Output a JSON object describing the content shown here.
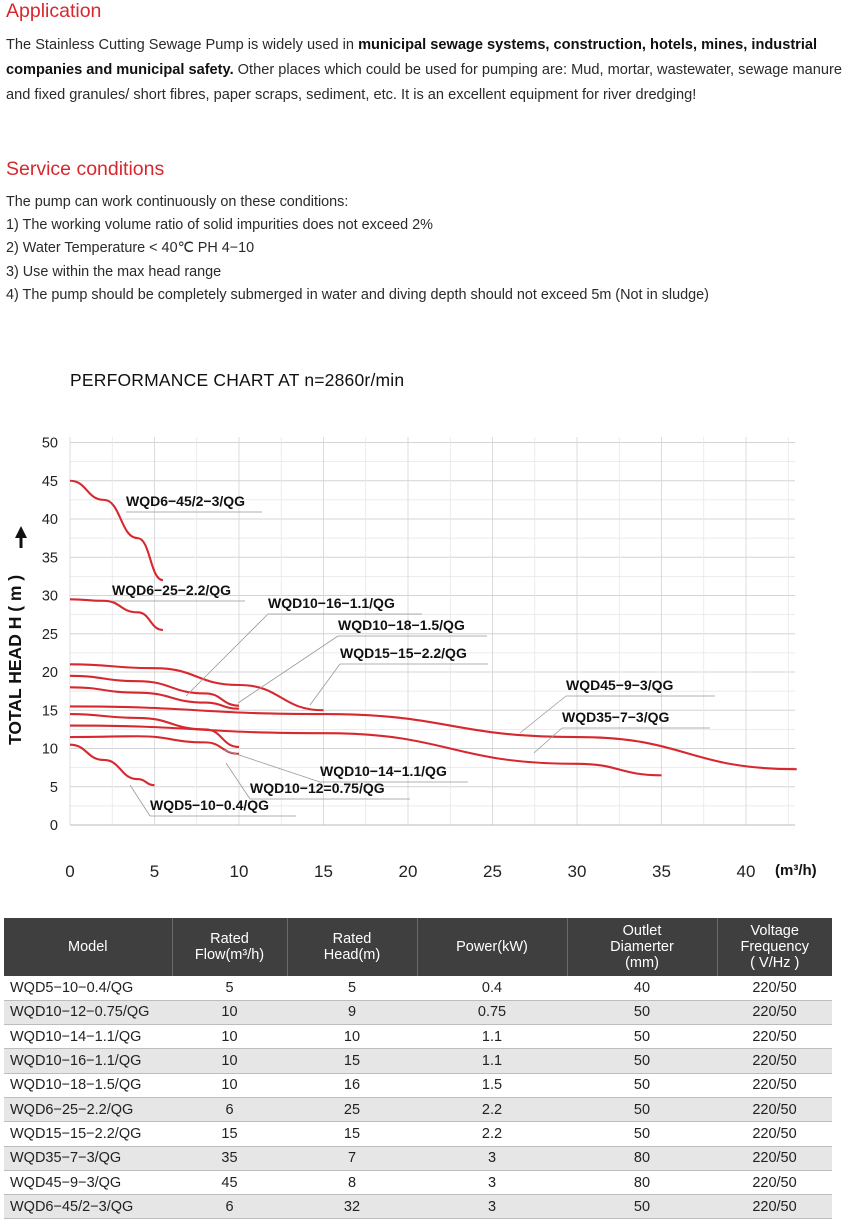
{
  "application": {
    "heading": "Application",
    "text_1": "The Stainless Cutting Sewage Pump is widely used in ",
    "bold_1": "municipal sewage systems, construction, hotels, mines, industrial companies and municipal safety.",
    "text_2": " Other places which could be used for pumping are: Mud, mortar, wastewater, sewage manure and fixed granules/ short fibres, paper scraps, sediment, etc. It is an excellent  equipment for river dredging!"
  },
  "service": {
    "heading": "Service conditions",
    "lines": [
      "The pump can work continuously on these conditions:",
      "1) The working volume ratio of solid impurities does not exceed 2%",
      "2) Water Temperature < 40℃   PH 4−10",
      "3) Use within the max head range",
      "4) The pump should be completely submerged in water and diving depth should not exceed 5m (Not in sludge)"
    ]
  },
  "chart_data": {
    "type": "line",
    "title": "PERFORMANCE  CHART AT  n=2860r/min",
    "ylabel": "TOTAL HEAD  H ( m )",
    "xlabel": "(m³/h)",
    "xlim": [
      0,
      44
    ],
    "ylim": [
      0,
      50
    ],
    "x_ticks": [
      0,
      5,
      10,
      15,
      20,
      25,
      30,
      35,
      40
    ],
    "y_ticks": [
      0,
      5,
      10,
      15,
      20,
      25,
      30,
      35,
      40,
      45,
      50
    ],
    "grid": true,
    "line_color": "#d7282f",
    "series": [
      {
        "name": "WQD6−45/2−3/QG",
        "x": [
          0,
          2,
          4,
          5.5
        ],
        "y": [
          45,
          42.5,
          37.5,
          32
        ]
      },
      {
        "name": "WQD6−25−2.2/QG",
        "x": [
          0,
          2,
          4,
          5.5
        ],
        "y": [
          29.5,
          29.3,
          27.8,
          25.5
        ]
      },
      {
        "name": "WQD10−16−1.1/QG",
        "x": [
          0,
          4,
          8,
          10
        ],
        "y": [
          18,
          17.3,
          16,
          15.2
        ]
      },
      {
        "name": "WQD10−18−1.5/QG",
        "x": [
          0,
          4,
          8,
          10
        ],
        "y": [
          19.5,
          18.8,
          17.2,
          15.6
        ]
      },
      {
        "name": "WQD15−15−2.2/QG",
        "x": [
          0,
          5,
          10,
          15
        ],
        "y": [
          21,
          20.5,
          18.3,
          15
        ]
      },
      {
        "name": "WQD45−9−3/QG",
        "x": [
          0,
          15,
          30,
          43
        ],
        "y": [
          15.5,
          14.5,
          11.5,
          7.3
        ]
      },
      {
        "name": "WQD35−7−3/QG",
        "x": [
          0,
          15,
          30,
          35
        ],
        "y": [
          13,
          12,
          8,
          6.5
        ]
      },
      {
        "name": "WQD10−14−1.1/QG",
        "x": [
          0,
          4,
          8,
          10
        ],
        "y": [
          14.5,
          14,
          12.5,
          10.2
        ]
      },
      {
        "name": "WQD10−12=0.75/QG",
        "x": [
          0,
          4,
          8,
          10
        ],
        "y": [
          11.5,
          11.6,
          10.8,
          9.3
        ]
      },
      {
        "name": "WQD5−10−0.4/QG",
        "x": [
          0,
          2,
          4,
          5
        ],
        "y": [
          10.5,
          8.5,
          6,
          5.2
        ]
      }
    ]
  },
  "table": {
    "headers": [
      [
        "Model"
      ],
      [
        "Rated",
        "Flow(m³/h)"
      ],
      [
        "Rated",
        "Head(m)"
      ],
      [
        "Power(kW)"
      ],
      [
        "Outlet",
        "Diamerter",
        "(mm)"
      ],
      [
        "Voltage",
        "Frequency",
        "( V/Hz )"
      ]
    ],
    "rows": [
      [
        "WQD5−10−0.4/QG",
        "5",
        "5",
        "0.4",
        "40",
        "220/50"
      ],
      [
        "WQD10−12−0.75/QG",
        "10",
        "9",
        "0.75",
        "50",
        "220/50"
      ],
      [
        "WQD10−14−1.1/QG",
        "10",
        "10",
        "1.1",
        "50",
        "220/50"
      ],
      [
        "WQD10−16−1.1/QG",
        "10",
        "15",
        "1.1",
        "50",
        "220/50"
      ],
      [
        "WQD10−18−1.5/QG",
        "10",
        "16",
        "1.5",
        "50",
        "220/50"
      ],
      [
        "WQD6−25−2.2/QG",
        "6",
        "25",
        "2.2",
        "50",
        "220/50"
      ],
      [
        "WQD15−15−2.2/QG",
        "15",
        "15",
        "2.2",
        "50",
        "220/50"
      ],
      [
        "WQD35−7−3/QG",
        "35",
        "7",
        "3",
        "80",
        "220/50"
      ],
      [
        "WQD45−9−3/QG",
        "45",
        "8",
        "3",
        "80",
        "220/50"
      ],
      [
        "WQD6−45/2−3/QG",
        "6",
        "32",
        "3",
        "50",
        "220/50"
      ]
    ]
  }
}
